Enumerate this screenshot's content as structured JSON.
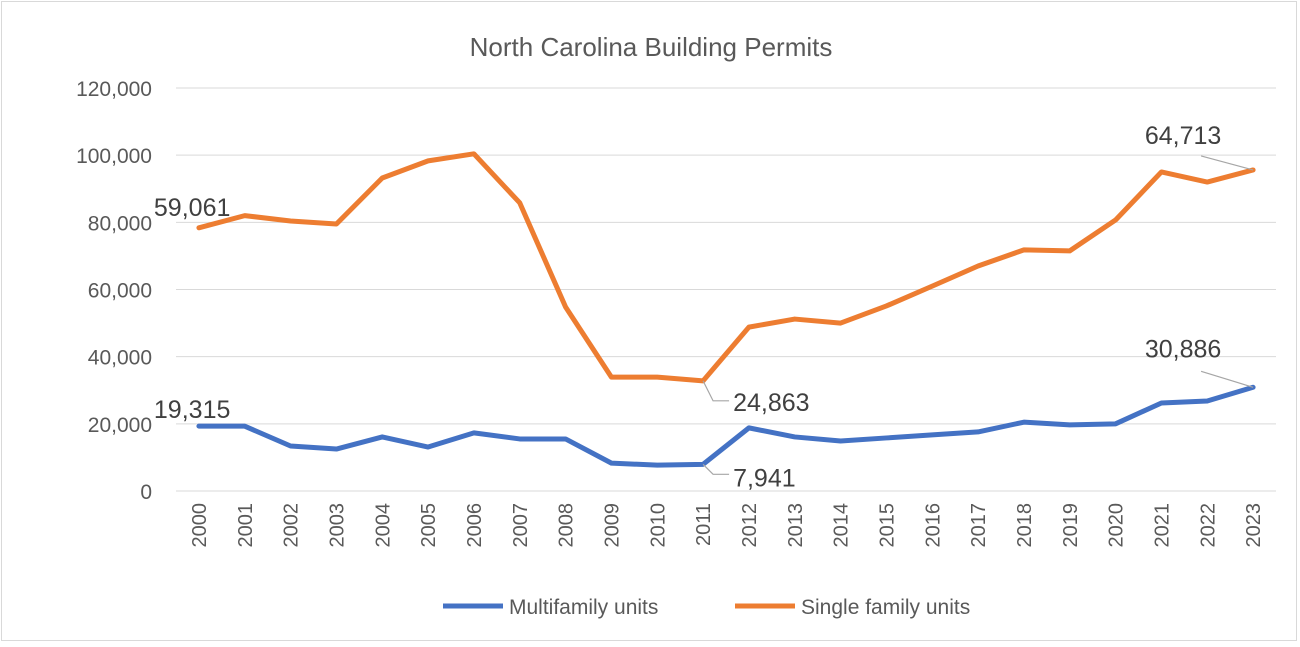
{
  "chart_data": {
    "type": "line",
    "stacked": true,
    "title": "North Carolina Building Permits",
    "xlabel": "",
    "ylabel": "",
    "ylim": [
      0,
      120000
    ],
    "yticks": [
      "0",
      "20,000",
      "40,000",
      "60,000",
      "80,000",
      "100,000",
      "120,000"
    ],
    "ytick_values": [
      0,
      20000,
      40000,
      60000,
      80000,
      100000,
      120000
    ],
    "grid": true,
    "legend_position": "bottom",
    "categories": [
      "2000",
      "2001",
      "2002",
      "2003",
      "2004",
      "2005",
      "2006",
      "2007",
      "2008",
      "2009",
      "2010",
      "2011",
      "2012",
      "2013",
      "2014",
      "2015",
      "2016",
      "2017",
      "2018",
      "2019",
      "2020",
      "2021",
      "2022",
      "2023"
    ],
    "series": [
      {
        "name": "Multifamily units",
        "color": "#4472c4",
        "values": [
          19315,
          19300,
          13400,
          12500,
          16100,
          13100,
          17300,
          15500,
          15500,
          8300,
          7700,
          7941,
          18800,
          16100,
          14900,
          15800,
          16700,
          17600,
          20500,
          19700,
          20000,
          26200,
          26800,
          30886
        ]
      },
      {
        "name": "Single family units",
        "color": "#ed7d31",
        "values": [
          59061,
          62700,
          67000,
          67000,
          77100,
          85200,
          83100,
          70300,
          39300,
          25600,
          26200,
          24863,
          30000,
          35100,
          35100,
          39300,
          44300,
          49400,
          51300,
          51800,
          60700,
          68800,
          65200,
          64713
        ]
      }
    ],
    "data_labels": [
      {
        "series": 0,
        "category": "2000",
        "text": "19,315"
      },
      {
        "series": 0,
        "category": "2011",
        "text": "7,941"
      },
      {
        "series": 0,
        "category": "2023",
        "text": "30,886"
      },
      {
        "series": 1,
        "category": "2000",
        "text": "59,061"
      },
      {
        "series": 1,
        "category": "2011",
        "text": "24,863"
      },
      {
        "series": 1,
        "category": "2023",
        "text": "64,713"
      }
    ]
  }
}
